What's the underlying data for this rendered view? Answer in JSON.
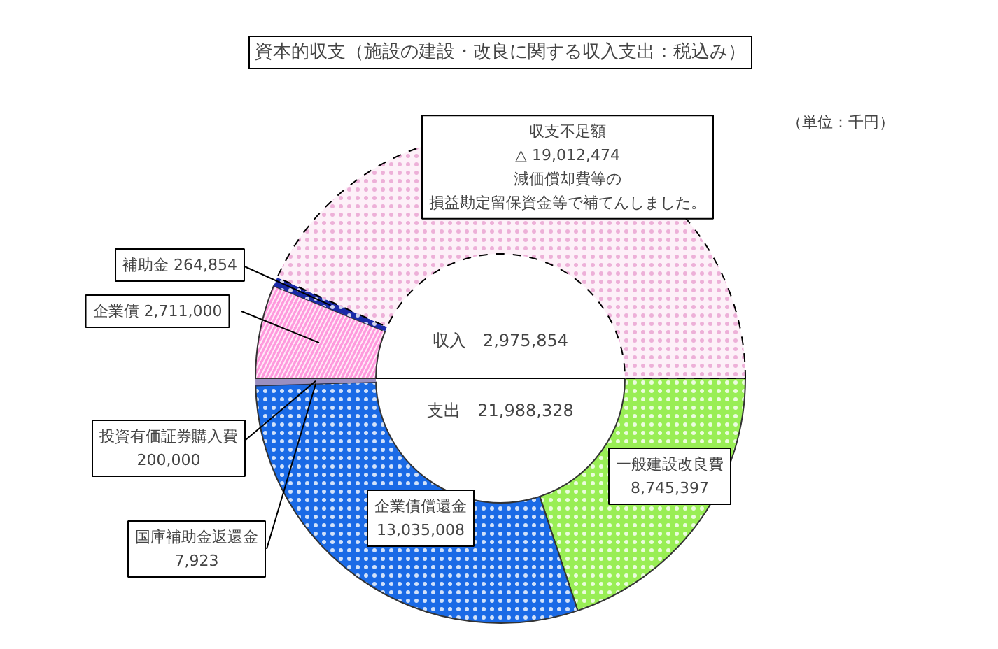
{
  "chart_data": {
    "type": "donut",
    "title": "資本的収支（施設の建設・改良に関する収入支出：税込み）",
    "categories": [
      "一般建設改良費",
      "企業債償還金",
      "国庫補助金返還金",
      "投資有価証券購入費",
      "企業債",
      "補助金",
      "収支不足額"
    ],
    "values": [
      8745397,
      13035008,
      7923,
      200000,
      2711000,
      264854,
      19012474
    ],
    "value_labels": [
      "8,745,397",
      "13,035,008",
      "7,923",
      "200,000",
      "2,711,000",
      "264,854",
      "△ 19,012,474"
    ],
    "colors": [
      "#99ee55",
      "#1a6ae6",
      "#1a3399",
      "#9a8fc0",
      "#ff99dd",
      "#1a2aa8",
      "#fdf0f8"
    ],
    "annotations": [
      "（単位：千円）",
      "収入　2,975,854",
      "支出　21,988,328",
      "減価償却費等の",
      "損益勘定留保資金等で補てんしました。"
    ]
  }
}
